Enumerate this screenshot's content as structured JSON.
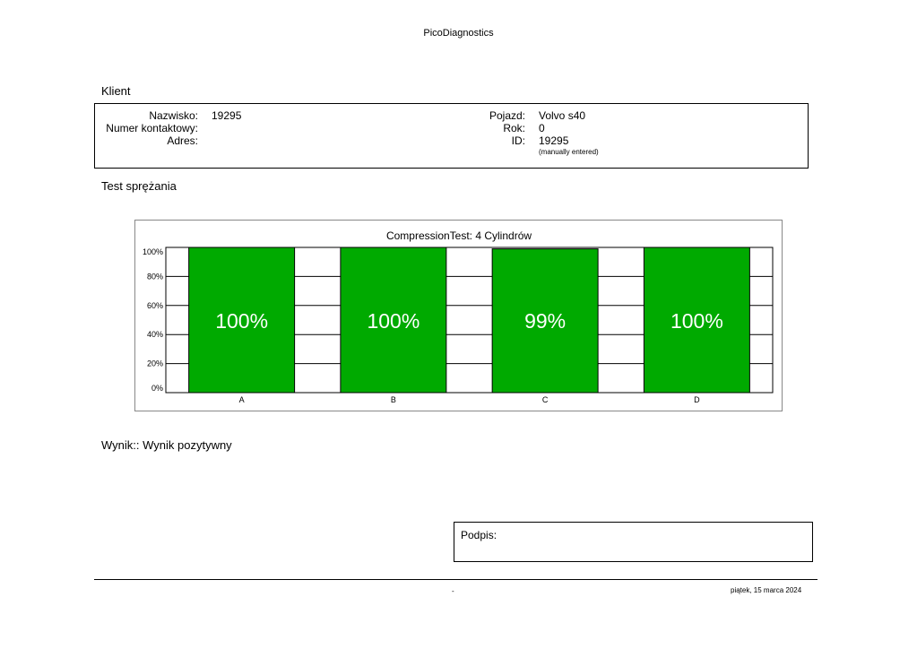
{
  "header": {
    "app_title": "PicoDiagnostics"
  },
  "client": {
    "section_title": "Klient",
    "name_label": "Nazwisko:",
    "name_value": "19295",
    "contact_label": "Numer kontaktowy:",
    "contact_value": "",
    "address_label": "Adres:",
    "address_value": "",
    "vehicle_label": "Pojazd:",
    "vehicle_value": "Volvo s40",
    "year_label": "Rok:",
    "year_value": "0",
    "id_label": "ID:",
    "id_value": "19295",
    "id_note": "(manually entered)"
  },
  "test": {
    "section_title": "Test sprężania"
  },
  "chart_data": {
    "type": "bar",
    "title": "CompressionTest: 4 Cylindrów",
    "categories": [
      "A",
      "B",
      "C",
      "D"
    ],
    "values": [
      100,
      100,
      99,
      100
    ],
    "data_labels": [
      "100%",
      "100%",
      "99%",
      "100%"
    ],
    "ylim": [
      0,
      100
    ],
    "yticks": [
      "0%",
      "20%",
      "40%",
      "60%",
      "80%",
      "100%"
    ],
    "xlabel": "",
    "ylabel": "",
    "grid": true,
    "bar_color": "#00aa00"
  },
  "result": {
    "text": "Wynik:: Wynik pozytywny"
  },
  "signature": {
    "label": "Podpis:"
  },
  "footer": {
    "center_text": "-",
    "date": "piątek, 15 marca 2024"
  }
}
